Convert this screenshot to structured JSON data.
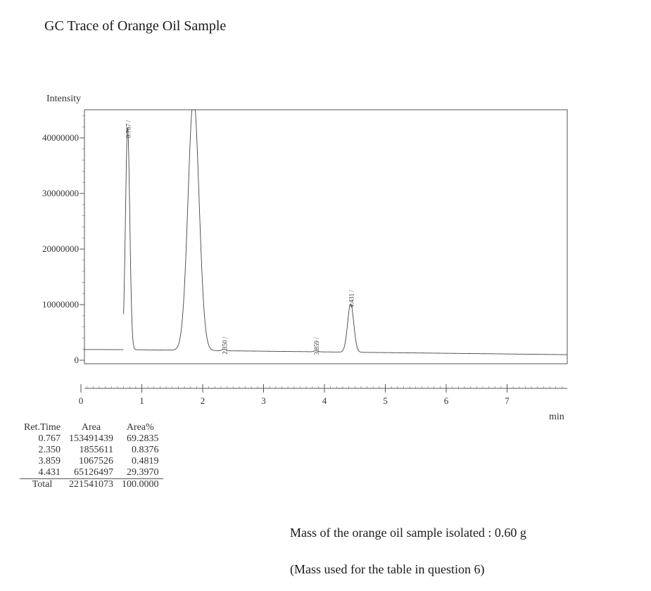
{
  "page": {
    "title": "GC Trace of Orange Oil Sample",
    "mass_note": "Mass of the orange oil sample isolated : 0.60 g",
    "usage_note": "(Mass used for the table in question 6)"
  },
  "chart_data": {
    "type": "line",
    "title": "",
    "xlabel": "min",
    "ylabel": "Intensity",
    "xlim": [
      0,
      8.1
    ],
    "ylim": [
      -5000000,
      45500000
    ],
    "x_ticks": [
      0,
      1,
      2,
      3,
      4,
      5,
      6,
      7
    ],
    "y_ticks": [
      {
        "value": 0,
        "label": "0"
      },
      {
        "value": 10000000,
        "label": "10000000"
      },
      {
        "value": 20000000,
        "label": "20000000"
      },
      {
        "value": 30000000,
        "label": "30000000"
      },
      {
        "value": 40000000,
        "label": "40000000"
      }
    ],
    "peaks": [
      {
        "rt": 0.767,
        "label": "0.767",
        "height": 40000000
      },
      {
        "rt": 1.85,
        "label": "",
        "height": 45500000,
        "offscale": true
      },
      {
        "rt": 2.35,
        "label": "2.350",
        "height": 300000
      },
      {
        "rt": 3.859,
        "label": "3.859",
        "height": 200000
      },
      {
        "rt": 4.431,
        "label": "4.431",
        "height": 8700000
      }
    ],
    "table": {
      "headers": [
        "Ret.Time",
        "Area",
        "Area%"
      ],
      "rows": [
        [
          "0.767",
          "153491439",
          "69.2835"
        ],
        [
          "2.350",
          "1855611",
          "0.8376"
        ],
        [
          "3.859",
          "1067526",
          "0.4819"
        ],
        [
          "4.431",
          "65126497",
          "29.3970"
        ]
      ],
      "total": [
        "Total",
        "221541073",
        "100.0000"
      ]
    }
  }
}
